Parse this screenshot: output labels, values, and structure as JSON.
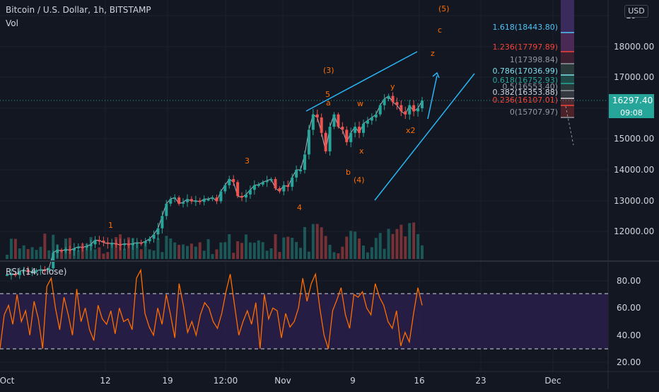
{
  "header": {
    "title": "Bitcoin / U.S. Dollar, 1h, BITSTAMP",
    "volume_label": "Vol",
    "currency_button": "USD"
  },
  "price_axis": {
    "ticks": [
      "18000.00",
      "17000.00",
      "16000.00",
      "15000.00",
      "14000.00",
      "13000.00",
      "12000.00"
    ],
    "clipped_ticks": [
      "19",
      "16"
    ],
    "current_price": "16297.40",
    "countdown": "09:08"
  },
  "rsi_panel": {
    "label": "RSI (14, close)",
    "ticks": [
      "80.00",
      "60.00",
      "40.00",
      "20.00"
    ],
    "upper_band": 70,
    "lower_band": 30
  },
  "time_axis": {
    "labels": [
      "Oct",
      "12",
      "19",
      "12:00",
      "Nov",
      "9",
      "16",
      "23",
      "Dec"
    ]
  },
  "fib_levels": [
    {
      "text": "1.618(18443.80)",
      "color": "#4fc3f7"
    },
    {
      "text": "1.236(17797.89)",
      "color": "#f44336"
    },
    {
      "text": "1(17398.84)",
      "color": "#9598a1"
    },
    {
      "text": "0.786(17036.99)",
      "color": "#80deea"
    },
    {
      "text": "0.618(16752.93)",
      "color": "#26a69a"
    },
    {
      "text": "0.5(16553.40)",
      "color": "#9598a1"
    },
    {
      "text": "0.382(16353.88)",
      "color": "#d1d4dc"
    },
    {
      "text": "0.236(16107.01)",
      "color": "#f44336"
    },
    {
      "text": "0(15707.97)",
      "color": "#9598a1"
    }
  ],
  "wave_labels": [
    {
      "text": "(5)"
    },
    {
      "text": "c"
    },
    {
      "text": "z"
    },
    {
      "text": "(3)"
    },
    {
      "text": "5"
    },
    {
      "text": "a"
    },
    {
      "text": "w"
    },
    {
      "text": "y"
    },
    {
      "text": "x"
    },
    {
      "text": "x2"
    },
    {
      "text": "b"
    },
    {
      "text": "(4)"
    },
    {
      "text": "3"
    },
    {
      "text": "4"
    },
    {
      "text": "1"
    }
  ],
  "colors": {
    "background": "#131722",
    "grid": "#1e222d",
    "up_candle": "#26a69a",
    "down_candle": "#ef5350",
    "wave_label": "#ff6d00",
    "trendline": "#29b6f6",
    "rsi_line": "#ff6d00",
    "rsi_band_fill": "#2a1f4a",
    "price_badge": "#26a69a"
  },
  "chart_data": {
    "type": "line",
    "title": "Bitcoin / U.S. Dollar, 1h, BITSTAMP",
    "price_series": {
      "name": "",
      "values": [
        10600,
        10620,
        10580,
        10700,
        10750,
        10680,
        10700,
        10720,
        10760,
        10740,
        10800,
        11300,
        11400,
        11360,
        11420,
        11380,
        11450,
        11500,
        11480,
        11520,
        11580,
        11720,
        11700,
        11640,
        11600,
        11620,
        11590,
        11560,
        11600,
        11580,
        11600,
        11640,
        11620,
        11680,
        11760,
        11900,
        12100,
        12500,
        12900,
        13050,
        13100,
        12900,
        12950,
        13050,
        12980,
        13000,
        12960,
        13050,
        13050,
        13100,
        12980,
        13300,
        13500,
        13700,
        13600,
        13150,
        13100,
        13200,
        13350,
        13500,
        13520,
        13600,
        13650,
        13700,
        13400,
        13300,
        13500,
        13450,
        13750,
        14000,
        14000,
        14500,
        15300,
        15800,
        15700,
        15200,
        14600,
        15400,
        15800,
        15400,
        15300,
        14900,
        15200,
        15400,
        15200,
        15500,
        15600,
        15700,
        15800,
        16100,
        16300,
        16400,
        16200,
        16100,
        15900,
        15800,
        16100,
        15900,
        16000,
        16250
      ]
    },
    "rsi_series": {
      "name": "",
      "values": [
        30,
        55,
        62,
        48,
        70,
        50,
        58,
        40,
        65,
        52,
        30,
        76,
        82,
        60,
        44,
        68,
        55,
        40,
        74,
        50,
        60,
        44,
        36,
        62,
        52,
        48,
        58,
        41,
        60,
        50,
        52,
        44,
        82,
        88,
        56,
        46,
        40,
        60,
        48,
        70,
        55,
        38,
        78,
        62,
        42,
        50,
        40,
        55,
        64,
        60,
        50,
        45,
        56,
        72,
        85,
        62,
        40,
        50,
        58,
        48,
        64,
        30,
        70,
        52,
        60,
        58,
        38,
        56,
        46,
        50,
        60,
        82,
        65,
        78,
        85,
        60,
        40,
        30,
        58,
        66,
        75,
        55,
        45,
        70,
        68,
        72,
        60,
        55,
        78,
        68,
        62,
        50,
        45,
        58,
        32,
        42,
        35,
        56,
        75,
        62
      ]
    },
    "y_range": [
      11200,
      19700
    ],
    "rsi_range": [
      18,
      90
    ]
  }
}
